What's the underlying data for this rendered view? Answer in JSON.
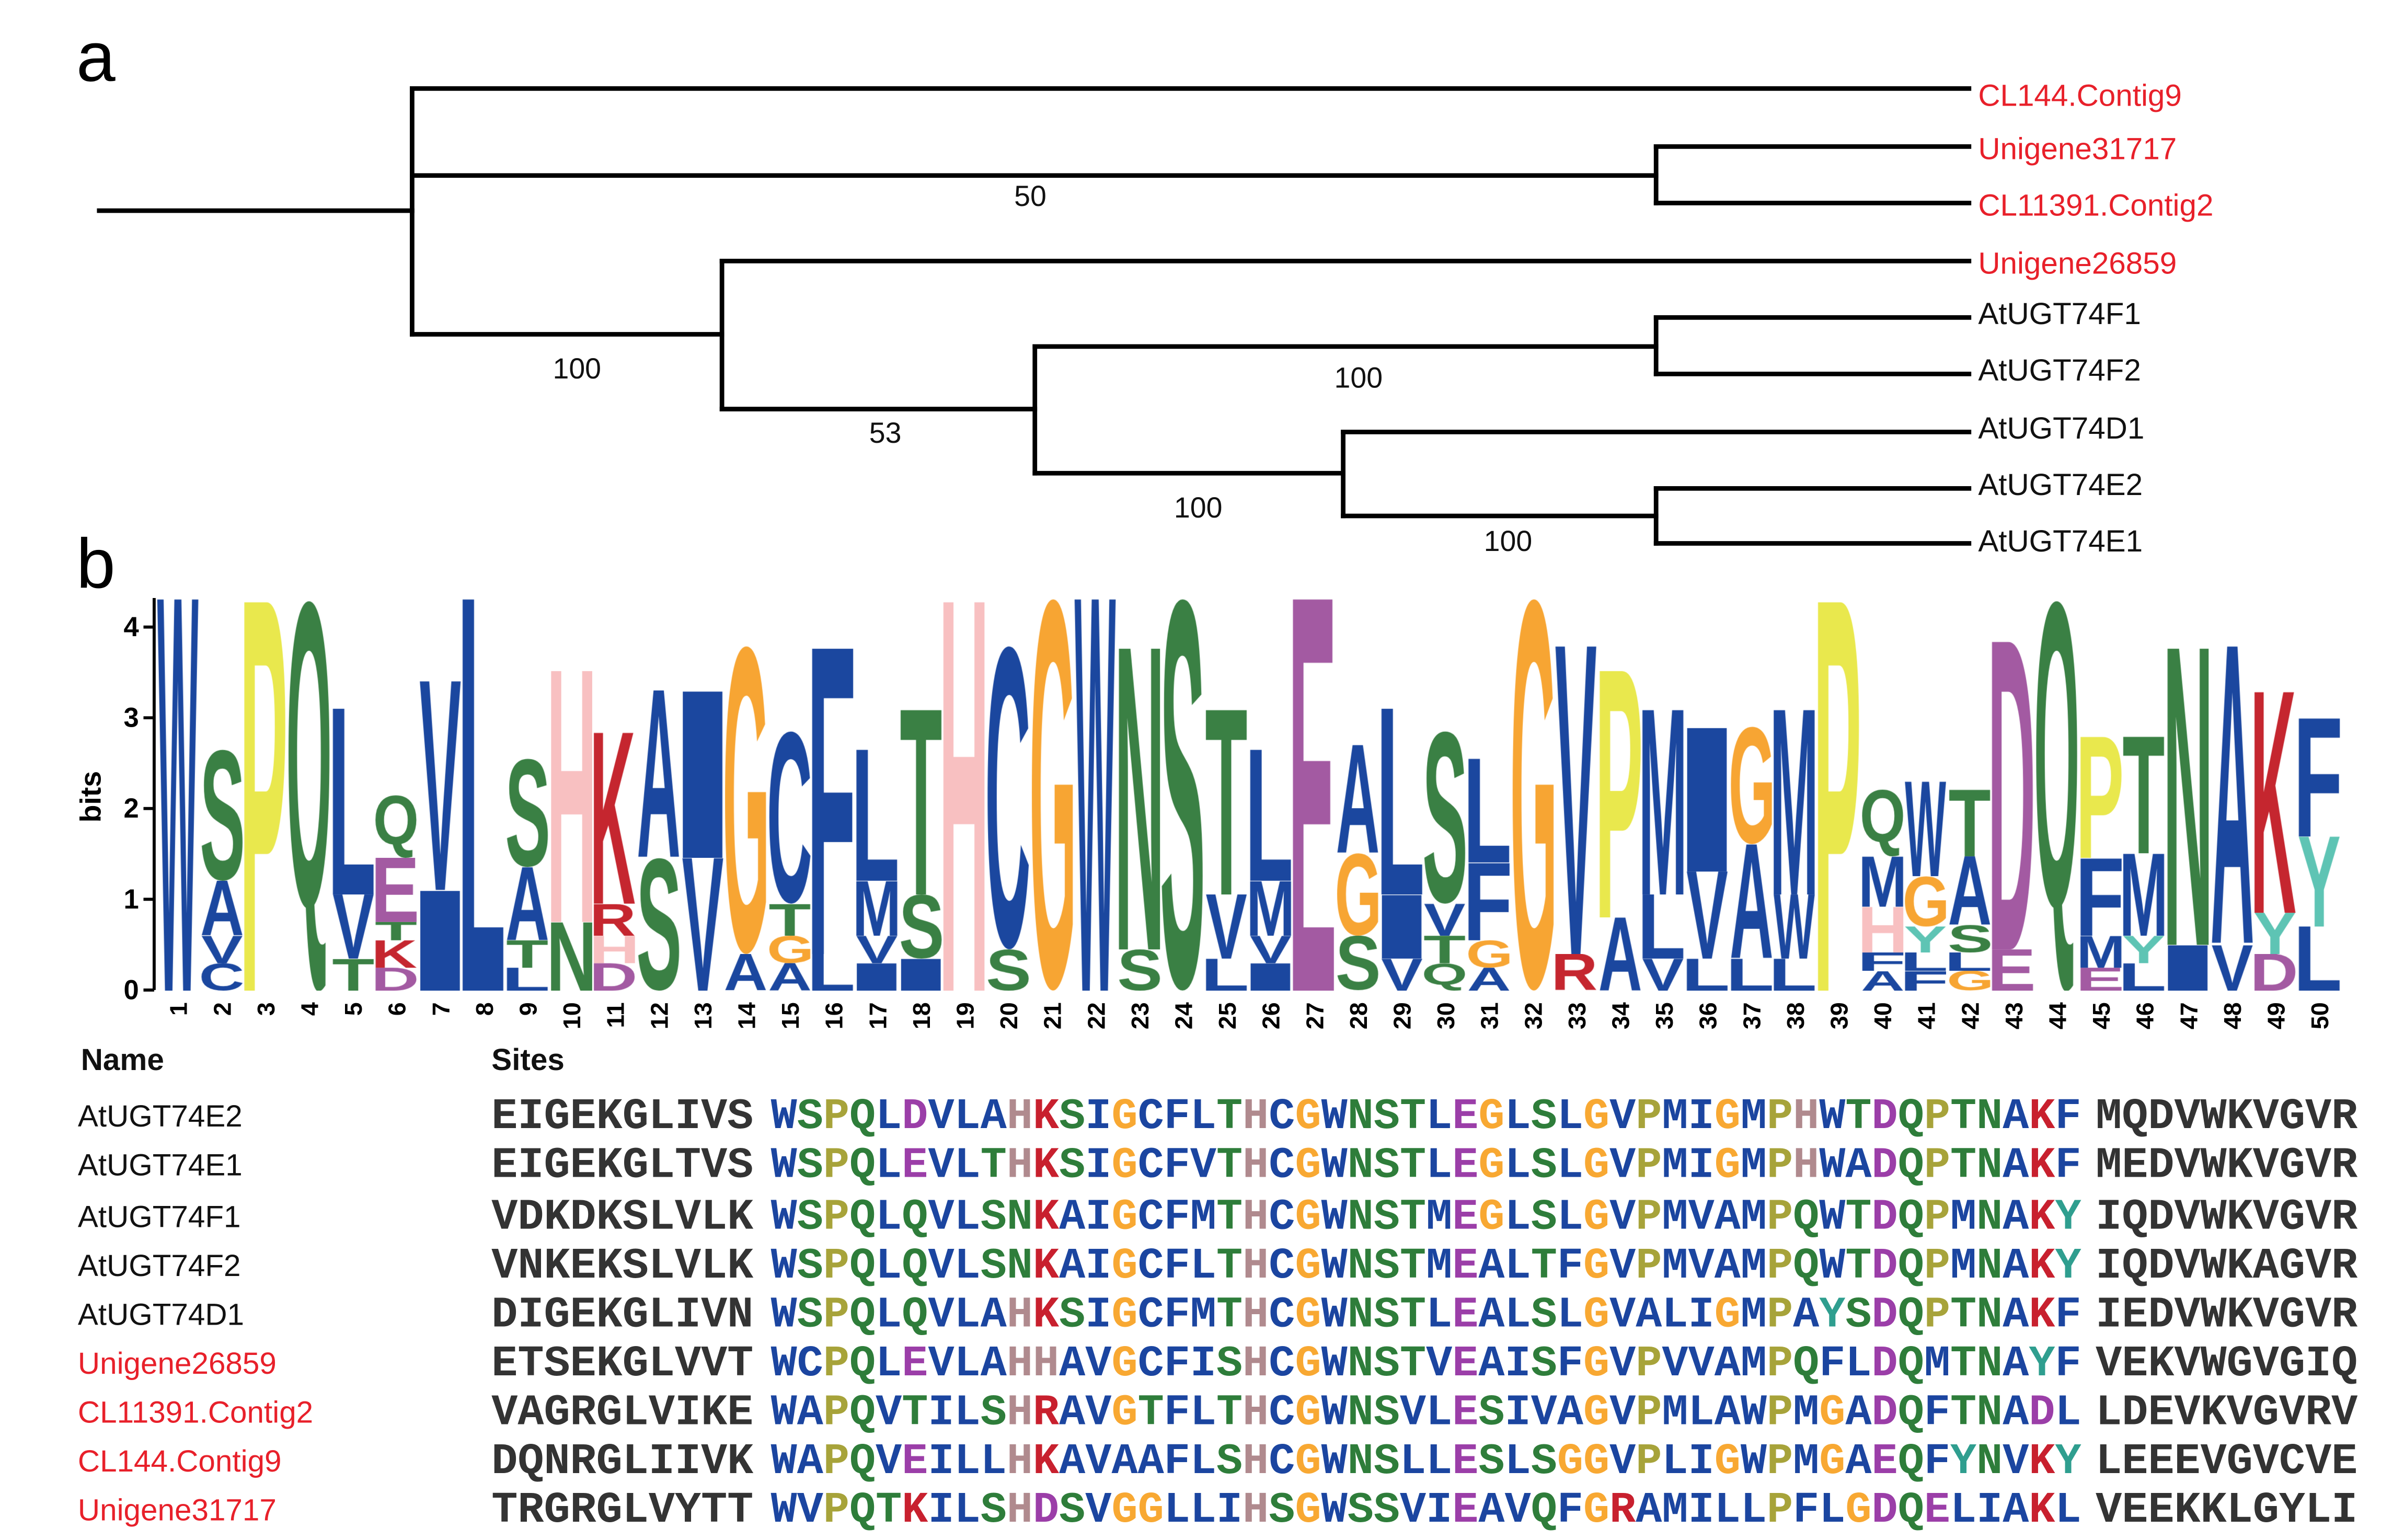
{
  "panels": {
    "a": "a",
    "b": "b"
  },
  "tree": {
    "leaves": [
      {
        "name": "CL144.Contig9",
        "color": "#e8202a"
      },
      {
        "name": "Unigene31717",
        "color": "#e8202a"
      },
      {
        "name": "CL11391.Contig2",
        "color": "#e8202a"
      },
      {
        "name": "Unigene26859",
        "color": "#e8202a"
      },
      {
        "name": "AtUGT74F1",
        "color": "#111111"
      },
      {
        "name": "AtUGT74F2",
        "color": "#111111"
      },
      {
        "name": "AtUGT74D1",
        "color": "#111111"
      },
      {
        "name": "AtUGT74E2",
        "color": "#111111"
      },
      {
        "name": "AtUGT74E1",
        "color": "#111111"
      }
    ],
    "bootstrap": [
      "50",
      "100",
      "100",
      "53",
      "100",
      "100"
    ]
  },
  "logo": {
    "ylabel": "bits",
    "yticks": [
      "0",
      "1",
      "2",
      "3",
      "4"
    ],
    "ymax": 4.32,
    "colors": {
      "W": "#1b479f",
      "V": "#1b479f",
      "L": "#1b479f",
      "A": "#1b479f",
      "I": "#1b479f",
      "M": "#1b479f",
      "F": "#1b479f",
      "C": "#1b479f",
      "S": "#3a8044",
      "T": "#3a8044",
      "N": "#3a8044",
      "Q": "#3a8044",
      "P": "#e9e84d",
      "G": "#f7a533",
      "H": "#f8c0c1",
      "K": "#c5262f",
      "R": "#c5262f",
      "D": "#a35aa2",
      "E": "#a35aa2",
      "Y": "#5ec4b4"
    },
    "positions": [
      {
        "pos": "1",
        "stack": [
          [
            "W",
            4.32
          ]
        ]
      },
      {
        "pos": "2",
        "stack": [
          [
            "C",
            0.3
          ],
          [
            "V",
            0.3
          ],
          [
            "A",
            0.6
          ],
          [
            "S",
            1.45
          ]
        ]
      },
      {
        "pos": "3",
        "stack": [
          [
            "P",
            4.32
          ]
        ]
      },
      {
        "pos": "4",
        "stack": [
          [
            "Q",
            4.32
          ]
        ]
      },
      {
        "pos": "5",
        "stack": [
          [
            "T",
            0.35
          ],
          [
            "V",
            0.7
          ],
          [
            "L",
            2.05
          ]
        ]
      },
      {
        "pos": "6",
        "stack": [
          [
            "D",
            0.25
          ],
          [
            "K",
            0.3
          ],
          [
            "T",
            0.2
          ],
          [
            "E",
            0.7
          ],
          [
            "Q",
            0.7
          ]
        ]
      },
      {
        "pos": "7",
        "stack": [
          [
            "I",
            1.1
          ],
          [
            "V",
            2.3
          ]
        ]
      },
      {
        "pos": "8",
        "stack": [
          [
            "L",
            4.32
          ]
        ]
      },
      {
        "pos": "9",
        "stack": [
          [
            "L",
            0.25
          ],
          [
            "T",
            0.3
          ],
          [
            "A",
            0.8
          ],
          [
            "S",
            1.2
          ]
        ]
      },
      {
        "pos": "10",
        "stack": [
          [
            "N",
            0.75
          ],
          [
            "H",
            2.8
          ]
        ]
      },
      {
        "pos": "11",
        "stack": [
          [
            "D",
            0.3
          ],
          [
            "H",
            0.3
          ],
          [
            "R",
            0.35
          ],
          [
            "K",
            1.9
          ]
        ]
      },
      {
        "pos": "12",
        "stack": [
          [
            "S",
            1.45
          ],
          [
            "A",
            1.85
          ]
        ]
      },
      {
        "pos": "13",
        "stack": [
          [
            "V",
            1.45
          ],
          [
            "I",
            1.85
          ]
        ]
      },
      {
        "pos": "14",
        "stack": [
          [
            "A",
            0.4
          ],
          [
            "G",
            3.4
          ]
        ]
      },
      {
        "pos": "15",
        "stack": [
          [
            "A",
            0.3
          ],
          [
            "G",
            0.3
          ],
          [
            "T",
            0.35
          ],
          [
            "C",
            1.9
          ]
        ]
      },
      {
        "pos": "16",
        "stack": [
          [
            "L",
            0.4
          ],
          [
            "F",
            3.4
          ]
        ]
      },
      {
        "pos": "17",
        "stack": [
          [
            "I",
            0.3
          ],
          [
            "V",
            0.3
          ],
          [
            "M",
            0.6
          ],
          [
            "L",
            1.45
          ]
        ]
      },
      {
        "pos": "18",
        "stack": [
          [
            "I",
            0.35
          ],
          [
            "S",
            0.7
          ],
          [
            "T",
            2.05
          ]
        ]
      },
      {
        "pos": "19",
        "stack": [
          [
            "H",
            4.32
          ]
        ]
      },
      {
        "pos": "20",
        "stack": [
          [
            "S",
            0.45
          ],
          [
            "C",
            3.35
          ]
        ]
      },
      {
        "pos": "21",
        "stack": [
          [
            "G",
            4.32
          ]
        ]
      },
      {
        "pos": "22",
        "stack": [
          [
            "W",
            4.32
          ]
        ]
      },
      {
        "pos": "23",
        "stack": [
          [
            "S",
            0.45
          ],
          [
            "N",
            3.35
          ]
        ]
      },
      {
        "pos": "24",
        "stack": [
          [
            "S",
            4.32
          ]
        ]
      },
      {
        "pos": "25",
        "stack": [
          [
            "L",
            0.35
          ],
          [
            "V",
            0.7
          ],
          [
            "T",
            2.05
          ]
        ]
      },
      {
        "pos": "26",
        "stack": [
          [
            "I",
            0.3
          ],
          [
            "V",
            0.3
          ],
          [
            "M",
            0.6
          ],
          [
            "L",
            1.45
          ]
        ]
      },
      {
        "pos": "27",
        "stack": [
          [
            "E",
            4.32
          ]
        ]
      },
      {
        "pos": "28",
        "stack": [
          [
            "S",
            0.6
          ],
          [
            "G",
            0.9
          ],
          [
            "A",
            1.2
          ]
        ]
      },
      {
        "pos": "29",
        "stack": [
          [
            "V",
            0.35
          ],
          [
            "I",
            0.7
          ],
          [
            "L",
            2.05
          ]
        ]
      },
      {
        "pos": "30",
        "stack": [
          [
            "Q",
            0.3
          ],
          [
            "T",
            0.3
          ],
          [
            "V",
            0.35
          ],
          [
            "S",
            1.9
          ]
        ]
      },
      {
        "pos": "31",
        "stack": [
          [
            "A",
            0.25
          ],
          [
            "G",
            0.3
          ],
          [
            "F",
            0.85
          ],
          [
            "L",
            1.15
          ]
        ]
      },
      {
        "pos": "32",
        "stack": [
          [
            "G",
            4.32
          ]
        ]
      },
      {
        "pos": "33",
        "stack": [
          [
            "R",
            0.4
          ],
          [
            "V",
            3.4
          ]
        ]
      },
      {
        "pos": "34",
        "stack": [
          [
            "A",
            0.8
          ],
          [
            "P",
            2.75
          ]
        ]
      },
      {
        "pos": "35",
        "stack": [
          [
            "V",
            0.35
          ],
          [
            "L",
            0.7
          ],
          [
            "M",
            2.05
          ]
        ]
      },
      {
        "pos": "36",
        "stack": [
          [
            "L",
            0.35
          ],
          [
            "V",
            0.95
          ],
          [
            "I",
            1.6
          ]
        ]
      },
      {
        "pos": "37",
        "stack": [
          [
            "L",
            0.35
          ],
          [
            "A",
            1.25
          ],
          [
            "G",
            1.3
          ]
        ]
      },
      {
        "pos": "38",
        "stack": [
          [
            "L",
            0.35
          ],
          [
            "W",
            0.7
          ],
          [
            "M",
            2.05
          ]
        ]
      },
      {
        "pos": "39",
        "stack": [
          [
            "P",
            4.32
          ]
        ]
      },
      {
        "pos": "40",
        "stack": [
          [
            "A",
            0.22
          ],
          [
            "F",
            0.2
          ],
          [
            "H",
            0.5
          ],
          [
            "M",
            0.55
          ],
          [
            "Q",
            0.75
          ]
        ]
      },
      {
        "pos": "41",
        "stack": [
          [
            "F",
            0.22
          ],
          [
            "L",
            0.2
          ],
          [
            "Y",
            0.28
          ],
          [
            "G",
            0.55
          ],
          [
            "W",
            1.05
          ]
        ]
      },
      {
        "pos": "42",
        "stack": [
          [
            "G",
            0.22
          ],
          [
            "L",
            0.2
          ],
          [
            "S",
            0.3
          ],
          [
            "A",
            0.75
          ],
          [
            "T",
            0.75
          ]
        ]
      },
      {
        "pos": "43",
        "stack": [
          [
            "E",
            0.45
          ],
          [
            "D",
            3.4
          ]
        ]
      },
      {
        "pos": "44",
        "stack": [
          [
            "Q",
            4.32
          ]
        ]
      },
      {
        "pos": "45",
        "stack": [
          [
            "E",
            0.25
          ],
          [
            "M",
            0.35
          ],
          [
            "F",
            0.85
          ],
          [
            "P",
            1.35
          ]
        ]
      },
      {
        "pos": "46",
        "stack": [
          [
            "L",
            0.3
          ],
          [
            "Y",
            0.3
          ],
          [
            "M",
            0.9
          ],
          [
            "T",
            1.3
          ]
        ]
      },
      {
        "pos": "47",
        "stack": [
          [
            "I",
            0.5
          ],
          [
            "N",
            3.3
          ]
        ]
      },
      {
        "pos": "48",
        "stack": [
          [
            "V",
            0.5
          ],
          [
            "A",
            3.3
          ]
        ]
      },
      {
        "pos": "49",
        "stack": [
          [
            "D",
            0.4
          ],
          [
            "Y",
            0.45
          ],
          [
            "K",
            2.45
          ]
        ]
      },
      {
        "pos": "50",
        "stack": [
          [
            "L",
            0.7
          ],
          [
            "Y",
            1.0
          ],
          [
            "F",
            1.3
          ]
        ]
      }
    ]
  },
  "alignment": {
    "name_header": "Name",
    "sites_header": "Sites",
    "residue_colors": {
      "W": "#1b45a0",
      "V": "#1b45a0",
      "L": "#1b45a0",
      "A": "#1b45a0",
      "I": "#1b45a0",
      "M": "#1b45a0",
      "F": "#1b45a0",
      "C": "#1b45a0",
      "S": "#2e7d3a",
      "T": "#2e7d3a",
      "N": "#2e7d3a",
      "Q": "#2e7d3a",
      "P": "#a7a33a",
      "G": "#f8a832",
      "H": "#b08a8e",
      "K": "#c8202e",
      "R": "#c8202e",
      "D": "#9b3ea8",
      "E": "#9b3ea8",
      "Y": "#2f9e8f"
    },
    "rows": [
      {
        "name": "AtUGT74E2",
        "color": "#111111",
        "left": "EIGEKGLIVS",
        "core": "WSPQLDVLAHKSIGCFLTHCGWNSTLEGLSLGVPMIGMPHWTDQPTNAKF",
        "right": "MQDVWKVGVR"
      },
      {
        "name": "AtUGT74E1",
        "color": "#111111",
        "left": "EIGEKGLTVS",
        "core": "WSPQLEVLTHKSIGCFVTHCGWNSTLEGLSLGVPMIGMPHWADQPTNAKF",
        "right": "MEDVWKVGVR"
      },
      {
        "name": "AtUGT74F1",
        "color": "#111111",
        "left": "VDKDKSLVLK",
        "core": "WSPQLQVLSNKAIGCFMTHCGWNSTMEGLSLGVPMVAMPQWTDQPMNAKY",
        "right": "IQDVWKVGVR"
      },
      {
        "name": "AtUGT74F2",
        "color": "#111111",
        "left": "VNKEKSLVLK",
        "core": "WSPQLQVLSNKAIGCFLTHCGWNSTMEALTFGVPMVAMPQWTDQPMNAKY",
        "right": "IQDVWKAGVR"
      },
      {
        "name": "AtUGT74D1",
        "color": "#111111",
        "left": "DIGEKGLIVN",
        "core": "WSPQLQVLAHKSIGCFMTHCGWNSTLEALSLGVALIGMPAYSDQPTNAKF",
        "right": "IEDVWKVGVR"
      },
      {
        "name": "Unigene26859",
        "color": "#e8202a",
        "left": "ETSEKGLVVT",
        "core": "WCPQLEVLAHHAVGCFISHCGWNSTVEAISFGVPVVAMPQFLDQMTNAYF",
        "right": "VEKVWGVGIQ"
      },
      {
        "name": "CL11391.Contig2",
        "color": "#e8202a",
        "left": "VAGRGLVIKE",
        "core": "WAPQVTILSHRAVGTFLTHCGWNSVLESIVAGVPMLAWPMGADQFTNADL",
        "right": "LDEVKVGVRV"
      },
      {
        "name": "CL144.Contig9",
        "color": "#e8202a",
        "left": "DQNRGLIIVK",
        "core": "WAPQVEILLHKAVAAFLSHCGWNSLLESLSGGVPLIGWPMGAEQFYNVKY",
        "right": "LEEEVGVCVE"
      },
      {
        "name": "Unigene31717",
        "color": "#e8202a",
        "left": "TRGRGLVYTT",
        "core": "WVPQTKILSHDSVGGLLIHSGWSSVIEAVQFGRAMILLPFLGDQELIAKL",
        "right": "VEEKKLGYLI"
      }
    ]
  }
}
